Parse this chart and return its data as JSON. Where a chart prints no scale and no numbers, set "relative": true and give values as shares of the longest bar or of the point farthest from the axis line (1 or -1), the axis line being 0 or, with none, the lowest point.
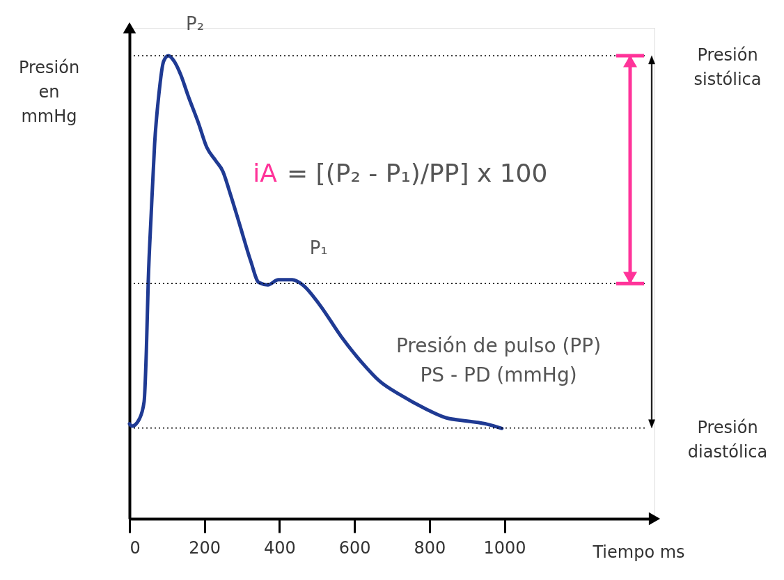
{
  "chart_data": {
    "type": "line",
    "relative": true,
    "xlabel": "Tiempo ms",
    "ylabel": "Presión en mmHg",
    "xlim": [
      0,
      1400
    ],
    "xticks": [
      0,
      200,
      400,
      600,
      800,
      1000
    ],
    "series": [
      {
        "color": "#1f3a93",
        "x": [
          0,
          7,
          26,
          39,
          45,
          50,
          58,
          67,
          78,
          91,
          104,
          119,
          137,
          156,
          184,
          206,
          230,
          249,
          267,
          295,
          323,
          345,
          369,
          397,
          434,
          462,
          508,
          564,
          620,
          667,
          723,
          788,
          844,
          900,
          955,
          993
        ],
        "values": [
          0.205,
          0.2,
          0.215,
          0.253,
          0.364,
          0.513,
          0.661,
          0.81,
          0.914,
          0.988,
          1.0,
          0.988,
          0.958,
          0.914,
          0.854,
          0.802,
          0.773,
          0.75,
          0.706,
          0.632,
          0.557,
          0.51,
          0.505,
          0.516,
          0.516,
          0.505,
          0.461,
          0.394,
          0.337,
          0.297,
          0.267,
          0.238,
          0.218,
          0.211,
          0.204,
          0.195
        ]
      }
    ],
    "ref_lines": [
      {
        "axis": "y",
        "value": 1.0,
        "label": "Presión sistólica",
        "line_style": "dotted"
      },
      {
        "axis": "y",
        "value": 0.508,
        "label": null,
        "line_style": "dotted"
      },
      {
        "axis": "y",
        "value": 0.196,
        "label": "Presión diastólica",
        "line_style": "dotted"
      }
    ],
    "annotations": [
      {
        "text": "P₂",
        "x": 104,
        "y": 1.0
      },
      {
        "text": "P₁",
        "x": 434,
        "y": 0.516
      },
      "iA = [(P₂ - P₁)/PP] x 100",
      "Presión de pulso (PP)",
      "PS - PD (mmHg)"
    ],
    "grid": false,
    "marker": "none",
    "line_style": "solid"
  }
}
